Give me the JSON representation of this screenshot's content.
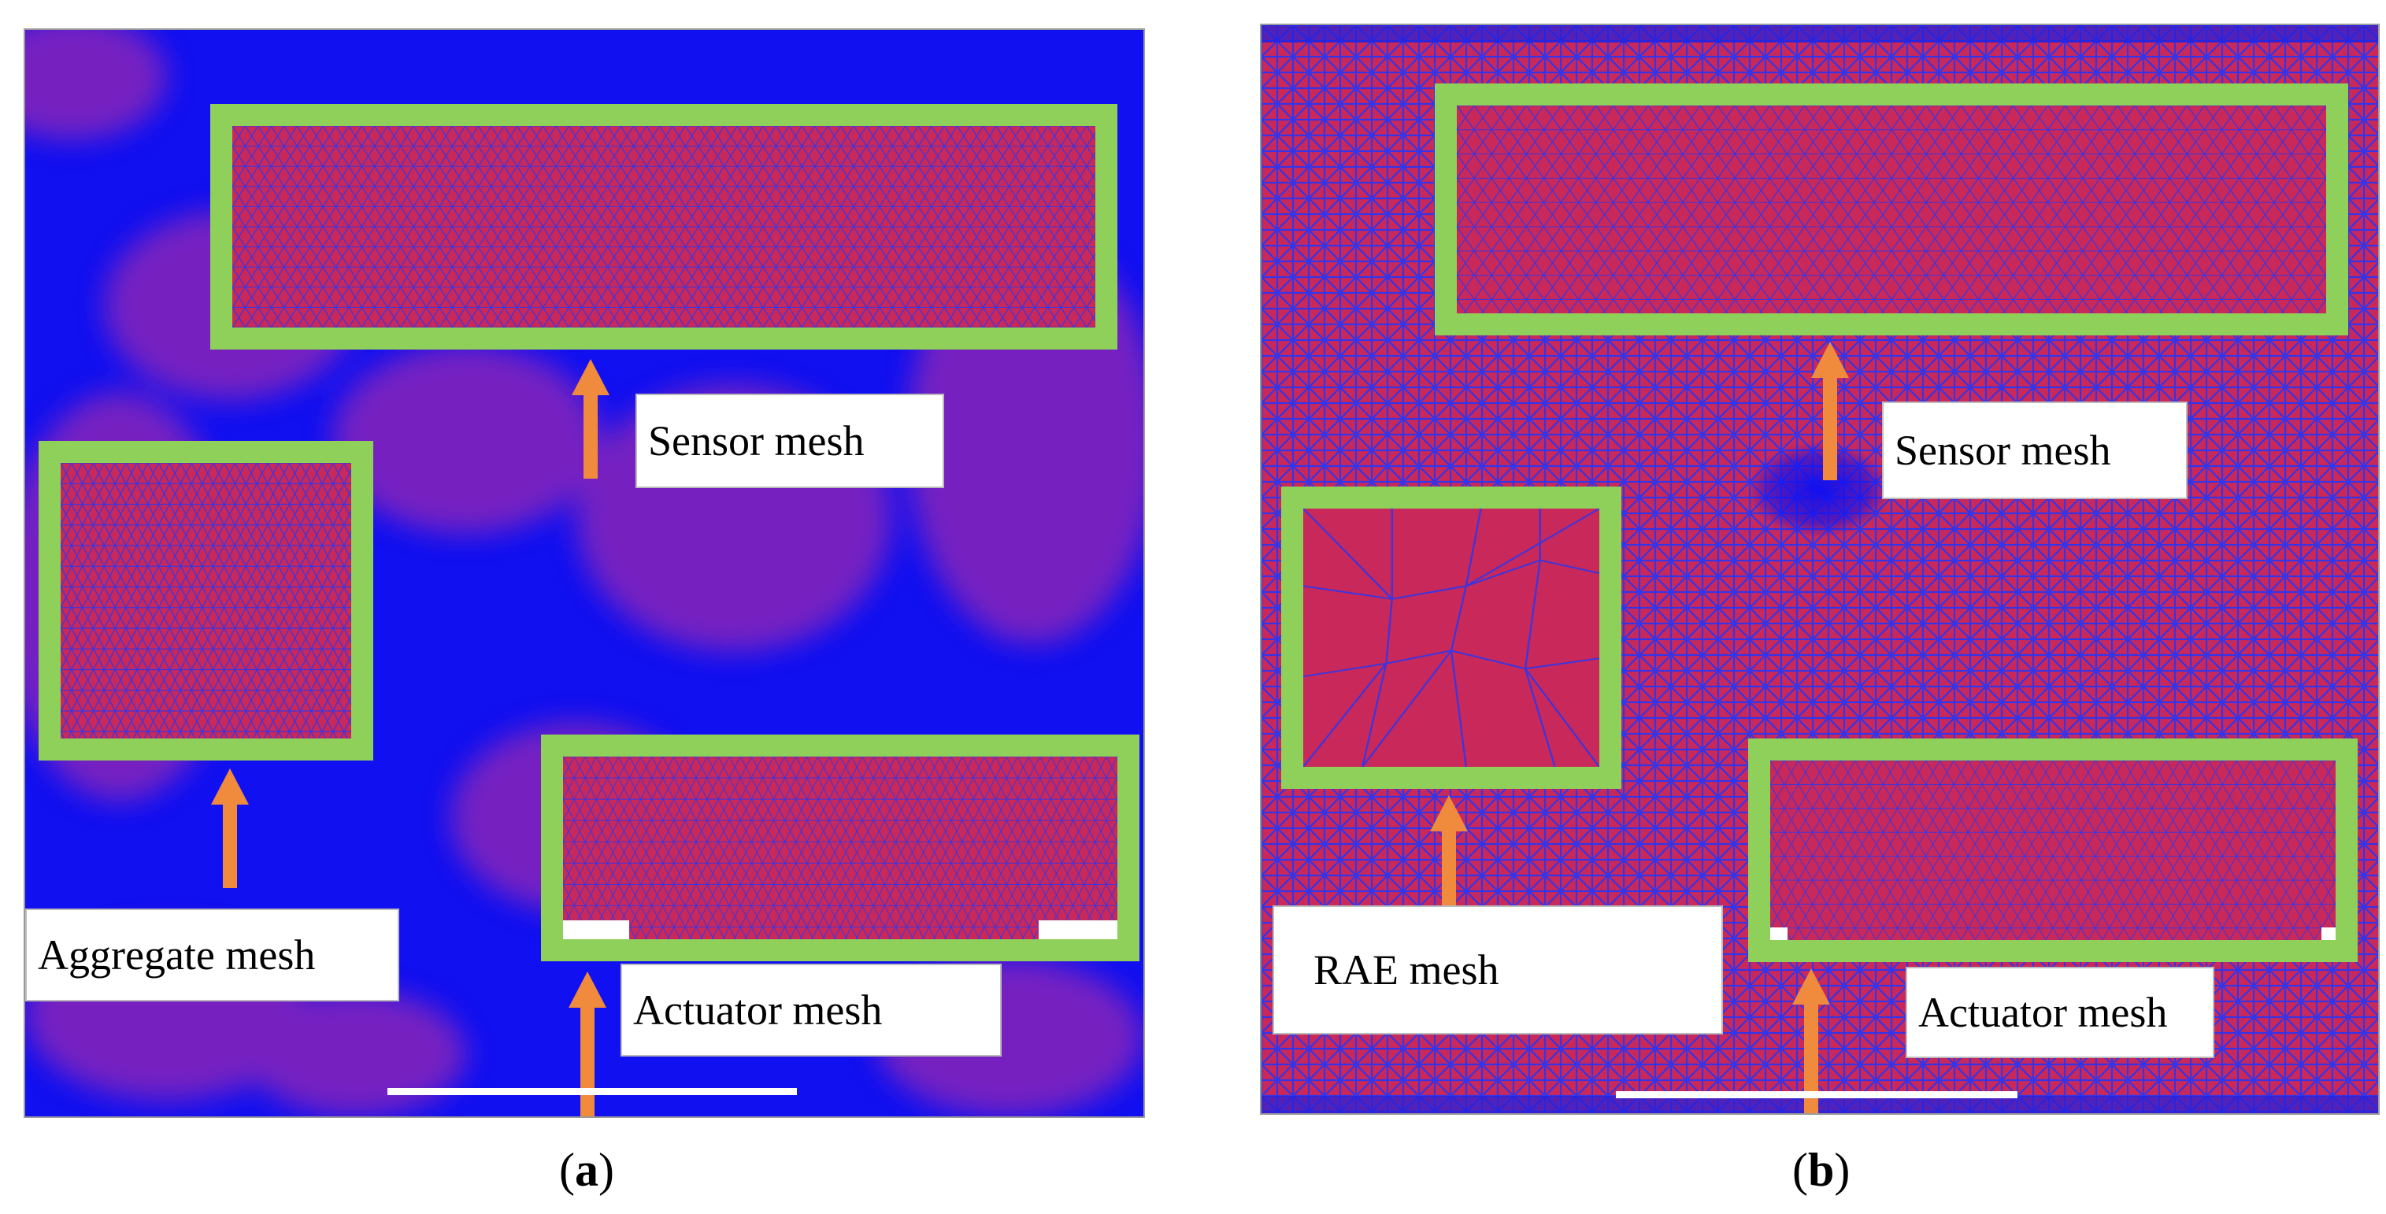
{
  "panels": [
    {
      "id": "a",
      "caption_letter": "a",
      "labels": {
        "sensor": "Sensor mesh",
        "aggregate": "Aggregate mesh",
        "actuator": "Actuator mesh"
      }
    },
    {
      "id": "b",
      "caption_letter": "b",
      "labels": {
        "sensor": "Sensor mesh",
        "rae": "RAE mesh",
        "actuator": "Actuator mesh"
      }
    }
  ],
  "colors": {
    "mesh_blue": "#1010f0",
    "mesh_red": "#c8285a",
    "frame_green": "#8fd05a",
    "arrow_orange": "#f08a3c"
  }
}
